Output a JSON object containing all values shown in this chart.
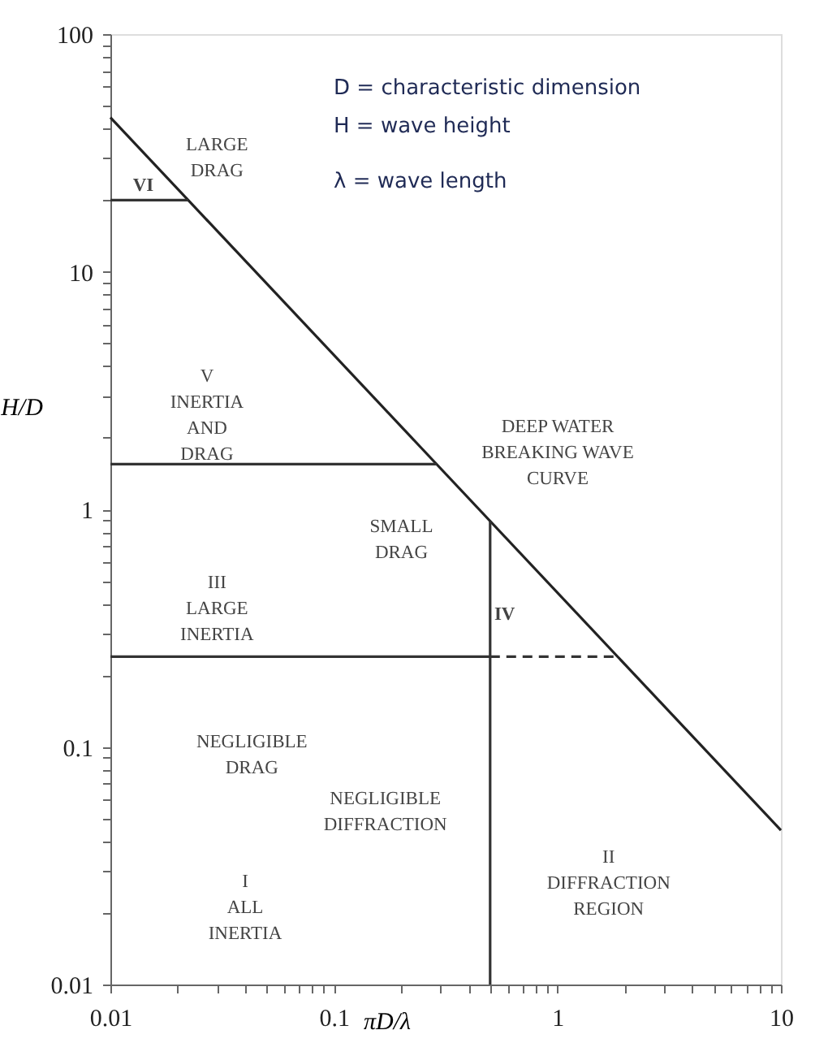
{
  "chart_data": {
    "type": "line",
    "xlabel": "πD/λ",
    "ylabel": "H/D",
    "log": "xy",
    "grid": false,
    "marker": "none",
    "xlim": [
      0.01,
      10
    ],
    "ylim": [
      0.01,
      100
    ],
    "xticks": [
      0.01,
      {
        "value": 0.02,
        "label": null
      },
      {
        "value": 0.03,
        "label": null
      },
      {
        "value": 0.04,
        "label": null
      },
      {
        "value": 0.05,
        "label": null
      },
      {
        "value": 0.06,
        "label": null
      },
      {
        "value": 0.07,
        "label": null
      },
      {
        "value": 0.08,
        "label": null
      },
      {
        "value": 0.09,
        "label": null
      },
      0.1,
      {
        "value": 0.2,
        "label": null
      },
      {
        "value": 0.3,
        "label": null
      },
      {
        "value": 0.4,
        "label": null
      },
      {
        "value": 0.5,
        "label": null
      },
      {
        "value": 0.6,
        "label": null
      },
      {
        "value": 0.7,
        "label": null
      },
      {
        "value": 0.8,
        "label": null
      },
      {
        "value": 0.9,
        "label": null
      },
      1,
      {
        "value": 2,
        "label": null
      },
      {
        "value": 3,
        "label": null
      },
      {
        "value": 4,
        "label": null
      },
      {
        "value": 5,
        "label": null
      },
      {
        "value": 6,
        "label": null
      },
      {
        "value": 7,
        "label": null
      },
      {
        "value": 8,
        "label": null
      },
      {
        "value": 9,
        "label": null
      },
      10
    ],
    "yticks": [
      0.01,
      {
        "value": 0.02,
        "label": null
      },
      {
        "value": 0.03,
        "label": null
      },
      {
        "value": 0.04,
        "label": null
      },
      {
        "value": 0.05,
        "label": null
      },
      {
        "value": 0.06,
        "label": null
      },
      {
        "value": 0.07,
        "label": null
      },
      {
        "value": 0.08,
        "label": null
      },
      {
        "value": 0.09,
        "label": null
      },
      0.1,
      {
        "value": 0.2,
        "label": null
      },
      {
        "value": 0.3,
        "label": null
      },
      {
        "value": 0.4,
        "label": null
      },
      {
        "value": 0.5,
        "label": null
      },
      {
        "value": 0.6,
        "label": null
      },
      {
        "value": 0.7,
        "label": null
      },
      {
        "value": 0.8,
        "label": null
      },
      {
        "value": 0.9,
        "label": null
      },
      1,
      {
        "value": 2,
        "label": null
      },
      {
        "value": 3,
        "label": null
      },
      {
        "value": 4,
        "label": null
      },
      {
        "value": 5,
        "label": null
      },
      {
        "value": 6,
        "label": null
      },
      {
        "value": 7,
        "label": null
      },
      {
        "value": 8,
        "label": null
      },
      {
        "value": 9,
        "label": null
      },
      10,
      {
        "value": 20,
        "label": null
      },
      {
        "value": 30,
        "label": null
      },
      {
        "value": 40,
        "label": null
      },
      {
        "value": 50,
        "label": null
      },
      {
        "value": 60,
        "label": null
      },
      {
        "value": 70,
        "label": null
      },
      {
        "value": 80,
        "label": null
      },
      {
        "value": 90,
        "label": null
      },
      100
    ],
    "series": [
      {
        "color": "#222222",
        "x": [
          0.01,
          10
        ],
        "values": [
          44.6,
          0.0446
        ]
      },
      {
        "color": "#333333",
        "x": [
          0.01,
          0.0223
        ],
        "values": [
          20,
          20
        ]
      },
      {
        "color": "#333333",
        "x": [
          0.01,
          0.288
        ],
        "values": [
          1.55,
          1.55
        ]
      },
      {
        "color": "#333333",
        "x": [
          0.01,
          0.5
        ],
        "values": [
          0.24,
          0.24
        ]
      },
      {
        "color": "#333333",
        "x": [
          0.5,
          1.86
        ],
        "values": [
          0.24,
          0.24
        ],
        "line_style": "dashed"
      },
      {
        "color": "#333333",
        "x": [
          0.5,
          0.5
        ],
        "values": [
          0.01,
          0.89
        ]
      }
    ],
    "annotations": [
      "D = characteristic dimension",
      "H = wave height",
      "λ = wave length",
      "VI",
      "LARGE\nDRAG",
      "V\nINERTIA\nAND\nDRAG",
      "DEEP WATER\nBREAKING WAVE\nCURVE",
      "SMALL\nDRAG",
      "III\nLARGE\nINERTIA",
      "IV",
      "NEGLIGIBLE\nDRAG",
      "NEGLIGIBLE\nDIFFRACTION",
      "I\nALL\nINERTIA",
      "II\nDIFFRACTION\nREGION"
    ]
  }
}
